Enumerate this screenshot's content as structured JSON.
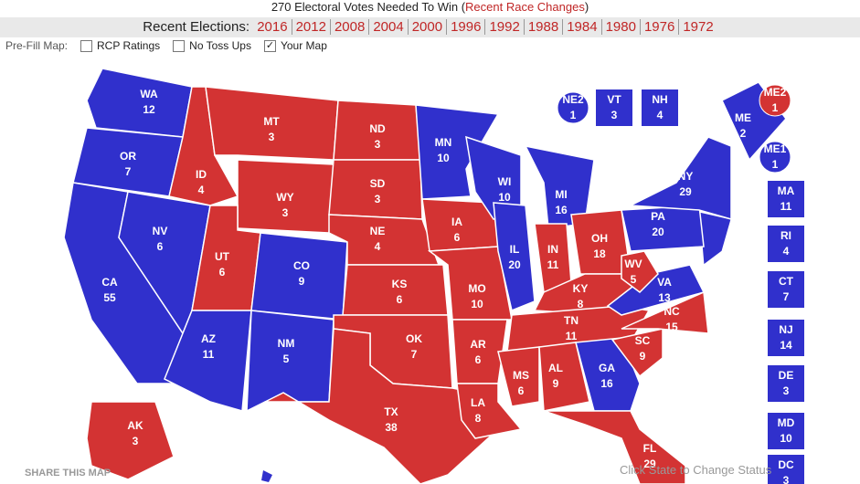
{
  "header": {
    "needed_text": "270 Electoral Votes Needed To Win (",
    "needed_link": "Recent Race Changes",
    "needed_close": ")"
  },
  "recent_elections": {
    "label": "Recent Elections:",
    "years": [
      "2016",
      "2012",
      "2008",
      "2004",
      "2000",
      "1996",
      "1992",
      "1988",
      "1984",
      "1980",
      "1976",
      "1972"
    ]
  },
  "prefill": {
    "label": "Pre-Fill Map:",
    "options": [
      {
        "label": "RCP Ratings",
        "checked": false
      },
      {
        "label": "No Toss Ups",
        "checked": false
      },
      {
        "label": "Your Map",
        "checked": true
      }
    ]
  },
  "map": {
    "share": "SHARE THIS MAP",
    "hint": "Click State to Change Status",
    "states": [
      {
        "abbr": "WA",
        "votes": 12,
        "color": "#3030cc"
      },
      {
        "abbr": "OR",
        "votes": 7,
        "color": "#3030cc"
      },
      {
        "abbr": "CA",
        "votes": 55,
        "color": "#3030cc"
      },
      {
        "abbr": "NV",
        "votes": 6,
        "color": "#3030cc"
      },
      {
        "abbr": "ID",
        "votes": 4,
        "color": "#d33333"
      },
      {
        "abbr": "MT",
        "votes": 3,
        "color": "#d33333"
      },
      {
        "abbr": "WY",
        "votes": 3,
        "color": "#d33333"
      },
      {
        "abbr": "UT",
        "votes": 6,
        "color": "#d33333"
      },
      {
        "abbr": "CO",
        "votes": 9,
        "color": "#3030cc"
      },
      {
        "abbr": "AZ",
        "votes": 11,
        "color": "#3030cc"
      },
      {
        "abbr": "NM",
        "votes": 5,
        "color": "#3030cc"
      },
      {
        "abbr": "ND",
        "votes": 3,
        "color": "#d33333"
      },
      {
        "abbr": "SD",
        "votes": 3,
        "color": "#d33333"
      },
      {
        "abbr": "NE",
        "votes": 4,
        "color": "#d33333"
      },
      {
        "abbr": "KS",
        "votes": 6,
        "color": "#d33333"
      },
      {
        "abbr": "OK",
        "votes": 7,
        "color": "#d33333"
      },
      {
        "abbr": "TX",
        "votes": 38,
        "color": "#d33333"
      },
      {
        "abbr": "MN",
        "votes": 10,
        "color": "#3030cc"
      },
      {
        "abbr": "IA",
        "votes": 6,
        "color": "#d33333"
      },
      {
        "abbr": "MO",
        "votes": 10,
        "color": "#d33333"
      },
      {
        "abbr": "AR",
        "votes": 6,
        "color": "#d33333"
      },
      {
        "abbr": "LA",
        "votes": 8,
        "color": "#d33333"
      },
      {
        "abbr": "WI",
        "votes": 10,
        "color": "#3030cc"
      },
      {
        "abbr": "IL",
        "votes": 20,
        "color": "#3030cc"
      },
      {
        "abbr": "MI",
        "votes": 16,
        "color": "#3030cc"
      },
      {
        "abbr": "IN",
        "votes": 11,
        "color": "#d33333"
      },
      {
        "abbr": "OH",
        "votes": 18,
        "color": "#d33333"
      },
      {
        "abbr": "KY",
        "votes": 8,
        "color": "#d33333"
      },
      {
        "abbr": "TN",
        "votes": 11,
        "color": "#d33333"
      },
      {
        "abbr": "MS",
        "votes": 6,
        "color": "#d33333"
      },
      {
        "abbr": "AL",
        "votes": 9,
        "color": "#d33333"
      },
      {
        "abbr": "GA",
        "votes": 16,
        "color": "#3030cc"
      },
      {
        "abbr": "FL",
        "votes": 29,
        "color": "#d33333"
      },
      {
        "abbr": "SC",
        "votes": 9,
        "color": "#d33333"
      },
      {
        "abbr": "NC",
        "votes": 15,
        "color": "#d33333"
      },
      {
        "abbr": "VA",
        "votes": 13,
        "color": "#3030cc"
      },
      {
        "abbr": "WV",
        "votes": 5,
        "color": "#d33333"
      },
      {
        "abbr": "PA",
        "votes": 20,
        "color": "#3030cc"
      },
      {
        "abbr": "NY",
        "votes": 29,
        "color": "#3030cc"
      },
      {
        "abbr": "ME",
        "votes": 2,
        "color": "#3030cc"
      },
      {
        "abbr": "AK",
        "votes": 3,
        "color": "#d33333"
      },
      {
        "abbr": "NE2",
        "votes": 1,
        "color": "#3030cc"
      },
      {
        "abbr": "VT",
        "votes": 3,
        "color": "#3030cc"
      },
      {
        "abbr": "NH",
        "votes": 4,
        "color": "#3030cc"
      },
      {
        "abbr": "ME2",
        "votes": 1,
        "color": "#d33333"
      },
      {
        "abbr": "ME1",
        "votes": 1,
        "color": "#3030cc"
      },
      {
        "abbr": "MA",
        "votes": 11,
        "color": "#3030cc"
      },
      {
        "abbr": "RI",
        "votes": 4,
        "color": "#3030cc"
      },
      {
        "abbr": "CT",
        "votes": 7,
        "color": "#3030cc"
      },
      {
        "abbr": "NJ",
        "votes": 14,
        "color": "#3030cc"
      },
      {
        "abbr": "DE",
        "votes": 3,
        "color": "#3030cc"
      },
      {
        "abbr": "MD",
        "votes": 10,
        "color": "#3030cc"
      },
      {
        "abbr": "DC",
        "votes": 3,
        "color": "#3030cc"
      }
    ]
  }
}
